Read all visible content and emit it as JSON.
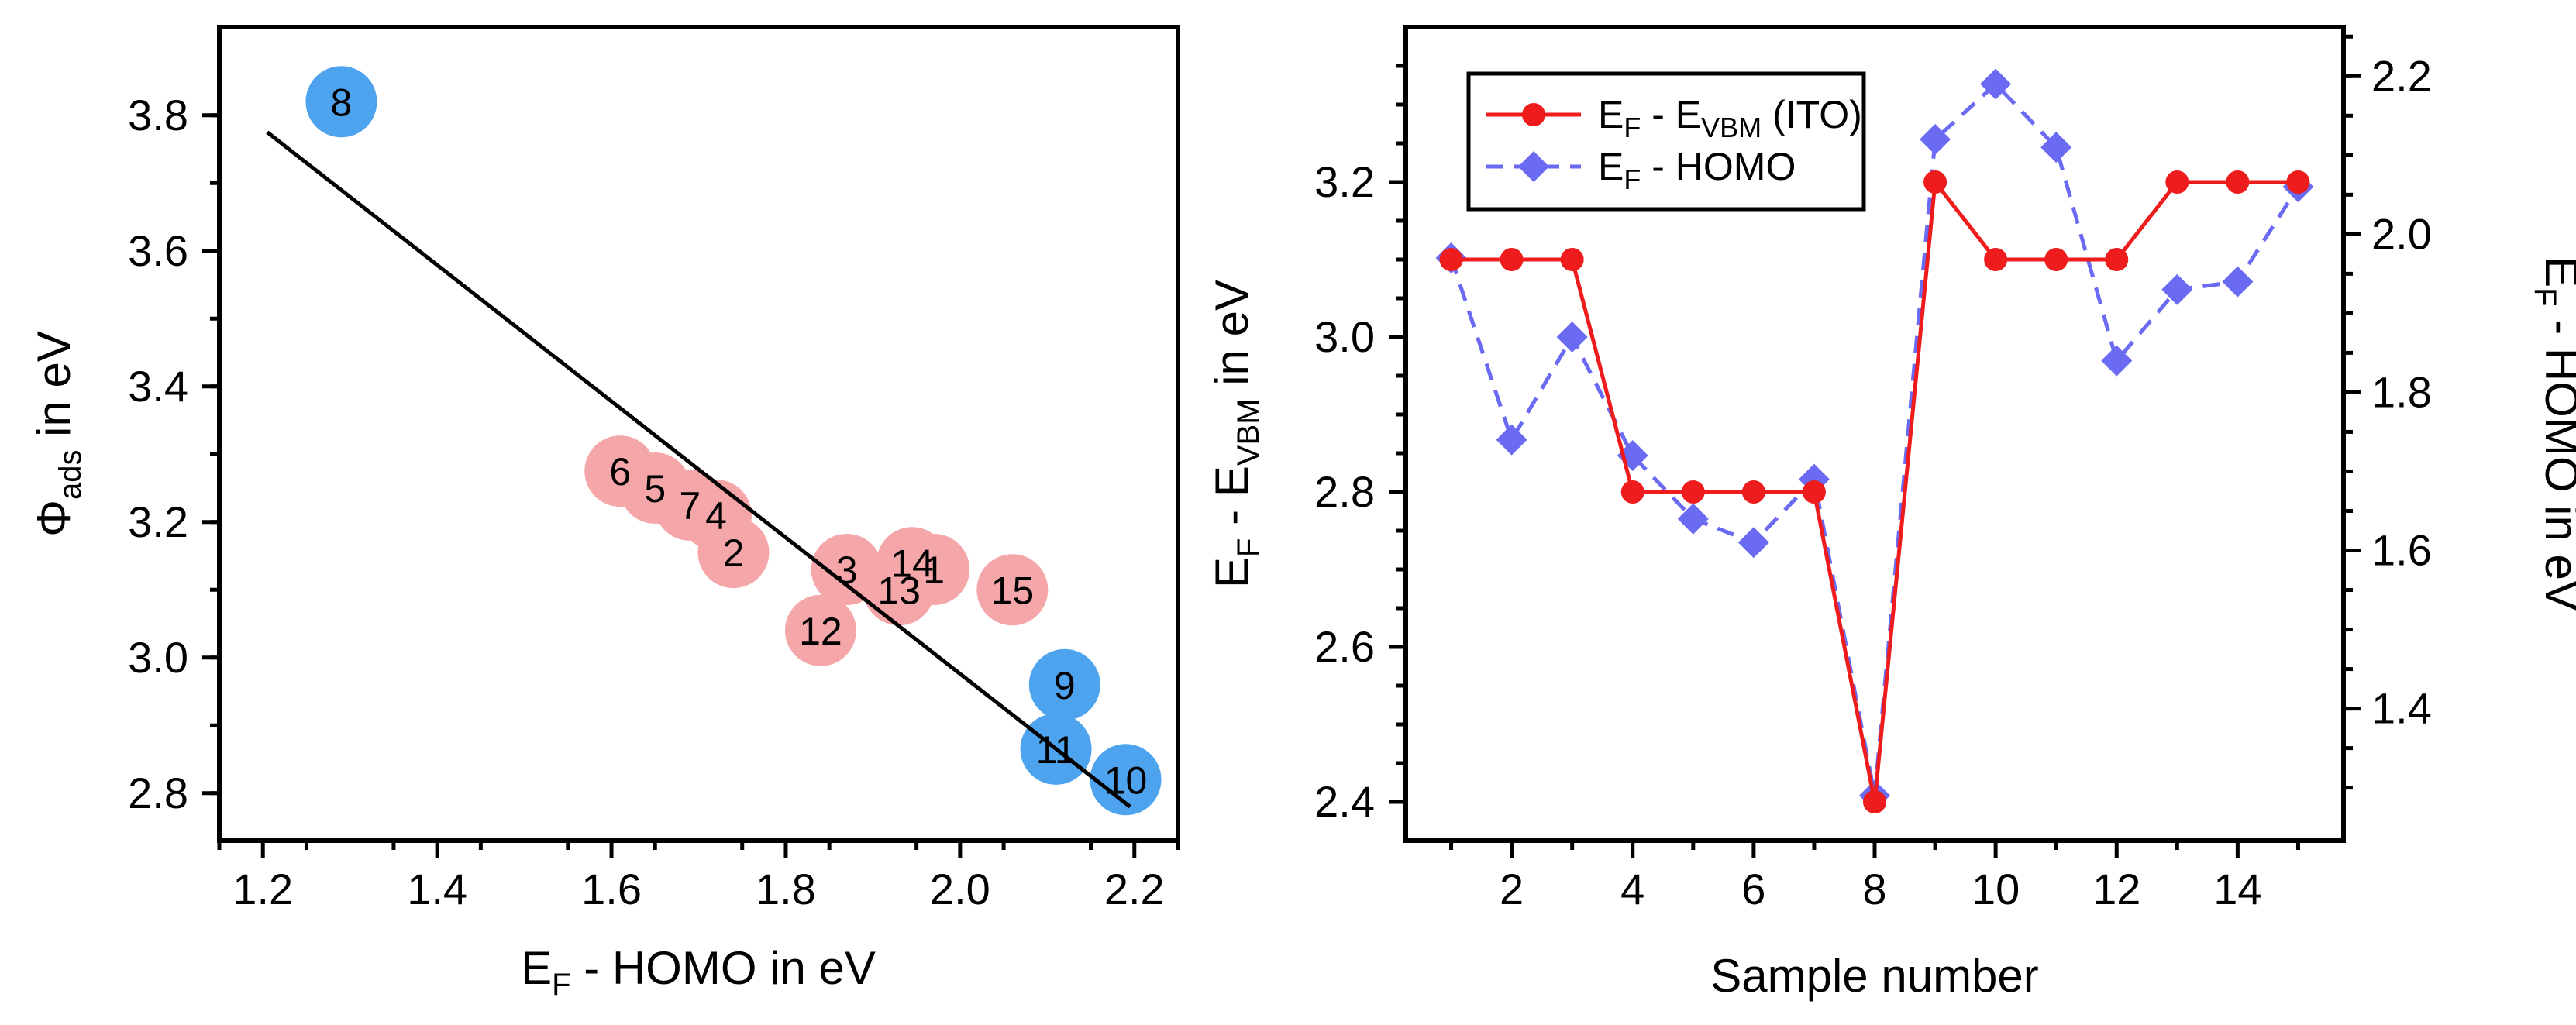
{
  "chart_data": [
    {
      "type": "scatter",
      "xlabel": "E_F - HOMO in eV",
      "ylabel": "Φ_ads in eV",
      "xlim": [
        1.15,
        2.25
      ],
      "ylim": [
        2.73,
        3.93
      ],
      "xticks": [
        1.2,
        1.4,
        1.6,
        1.8,
        2.0,
        2.2
      ],
      "yticks": [
        2.8,
        3.0,
        3.2,
        3.4,
        3.6,
        3.8
      ],
      "xtick_labels": [
        "1.2",
        "1.4",
        "1.6",
        "1.8",
        "2.0",
        "2.2"
      ],
      "ytick_labels": [
        "2.8",
        "3.0",
        "3.2",
        "3.4",
        "3.6",
        "3.8"
      ],
      "colors": {
        "red": "#f4a6a8",
        "blue": "#4da3ee"
      },
      "points": [
        {
          "label": "8",
          "x": 1.29,
          "y": 3.82,
          "group": "blue"
        },
        {
          "label": "6",
          "x": 1.61,
          "y": 3.275,
          "group": "red"
        },
        {
          "label": "5",
          "x": 1.65,
          "y": 3.25,
          "group": "red"
        },
        {
          "label": "7",
          "x": 1.69,
          "y": 3.225,
          "group": "red"
        },
        {
          "label": "4",
          "x": 1.72,
          "y": 3.21,
          "group": "red"
        },
        {
          "label": "2",
          "x": 1.74,
          "y": 3.155,
          "group": "red"
        },
        {
          "label": "3",
          "x": 1.87,
          "y": 3.13,
          "group": "red"
        },
        {
          "label": "14",
          "x": 1.945,
          "y": 3.14,
          "group": "red"
        },
        {
          "label": "1",
          "x": 1.97,
          "y": 3.13,
          "group": "red"
        },
        {
          "label": "13",
          "x": 1.93,
          "y": 3.1,
          "group": "red"
        },
        {
          "label": "15",
          "x": 2.06,
          "y": 3.1,
          "group": "red"
        },
        {
          "label": "12",
          "x": 1.84,
          "y": 3.04,
          "group": "red"
        },
        {
          "label": "9",
          "x": 2.12,
          "y": 2.96,
          "group": "blue"
        },
        {
          "label": "11",
          "x": 2.11,
          "y": 2.865,
          "group": "blue"
        },
        {
          "label": "10",
          "x": 2.19,
          "y": 2.82,
          "group": "blue"
        }
      ],
      "fit_line": {
        "x": [
          1.205,
          2.195
        ],
        "y": [
          3.775,
          2.78
        ]
      }
    },
    {
      "type": "line",
      "xlabel": "Sample number",
      "ylabel_left": "E_F - E_VBM in eV",
      "ylabel_right": "E_F - HOMO in eV",
      "xlim": [
        0.25,
        15.75
      ],
      "ylim_left": [
        2.35,
        3.4
      ],
      "ylim_right": [
        1.233,
        2.262
      ],
      "xticks": [
        2,
        4,
        6,
        8,
        10,
        12,
        14
      ],
      "xtick_labels": [
        "2",
        "4",
        "6",
        "8",
        "10",
        "12",
        "14"
      ],
      "yticks_left": [
        2.4,
        2.6,
        2.8,
        3.0,
        3.2
      ],
      "ytick_labels_left": [
        "2.4",
        "2.6",
        "2.8",
        "3.0",
        "3.2"
      ],
      "yticks_right": [
        1.4,
        1.6,
        1.8,
        2.0,
        2.2
      ],
      "ytick_labels_right": [
        "1.4",
        "1.6",
        "1.8",
        "2.0",
        "2.2"
      ],
      "x": [
        1,
        2,
        3,
        4,
        5,
        6,
        7,
        8,
        9,
        10,
        11,
        12,
        13,
        14,
        15
      ],
      "series": [
        {
          "name": "E_F - E_VBM (ITO)",
          "axis": "left",
          "color": "#ee1c1c",
          "marker": "circle",
          "line": "solid",
          "values": [
            3.1,
            3.1,
            3.1,
            2.8,
            2.8,
            2.8,
            2.8,
            2.4,
            3.2,
            3.1,
            3.1,
            3.1,
            3.2,
            3.2,
            3.2
          ]
        },
        {
          "name": "E_F - HOMO",
          "axis": "right",
          "color": "#6a6af2",
          "marker": "diamond",
          "line": "dashed",
          "values": [
            1.97,
            1.74,
            1.87,
            1.72,
            1.64,
            1.61,
            1.69,
            1.29,
            2.12,
            2.19,
            2.11,
            1.84,
            1.93,
            1.94,
            2.06
          ]
        }
      ],
      "legend": {
        "position": "top-left",
        "items": [
          {
            "main": "E",
            "sub1": "F",
            "mid": " - E",
            "sub2": "VBM",
            "tail": " (ITO)"
          },
          {
            "main": "E",
            "sub1": "F",
            "mid": " -  HOMO",
            "sub2": "",
            "tail": ""
          }
        ]
      }
    }
  ],
  "text": {
    "left_xlabel_a": "E",
    "left_xlabel_sub": "F",
    "left_xlabel_b": " - HOMO in eV",
    "left_ylabel_a": "Φ",
    "left_ylabel_sub": "ads",
    "left_ylabel_b": " in eV",
    "right_xlabel": "Sample number",
    "right_ylabel_left_a": "E",
    "right_ylabel_left_sub1": "F",
    "right_ylabel_left_b": " - E",
    "right_ylabel_left_sub2": "VBM",
    "right_ylabel_left_c": " in eV",
    "right_ylabel_right_a": "E",
    "right_ylabel_right_sub": "F",
    "right_ylabel_right_b": " - HOMO in eV"
  }
}
